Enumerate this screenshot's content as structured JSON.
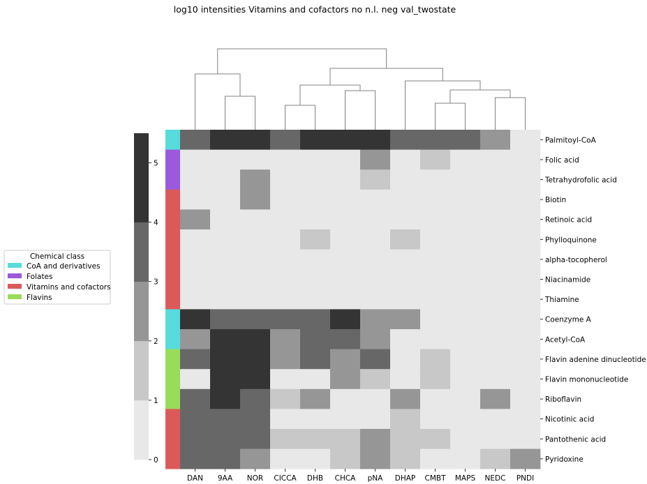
{
  "chart_data": {
    "type": "heatmap",
    "title": "log10 intensities Vitamins and cofactors no n.l. neg val_twostate",
    "columns": [
      "DAN",
      "9AA",
      "NOR",
      "CICCA",
      "DHB",
      "CHCA",
      "pNA",
      "DHAP",
      "CMBT",
      "MAPS",
      "NEDC",
      "PNDI"
    ],
    "rows": [
      "Palmitoyl-CoA",
      "Folic acid",
      "Tetrahydrofolic acid",
      "Biotin",
      "Retinoic acid",
      "Phylloquinone",
      "alpha-tocopherol",
      "Niacinamide",
      "Thiamine",
      "Coenzyme A",
      "Acetyl-CoA",
      "Flavin adenine dinucleotide",
      "Flavin mononucleotide",
      "Riboflavin",
      "Nicotinic acid",
      "Pantothenic acid",
      "Pyridoxine"
    ],
    "row_classes": [
      "CoA and derivatives",
      "Folates",
      "Folates",
      "Vitamins and cofactors",
      "Vitamins and cofactors",
      "Vitamins and cofactors",
      "Vitamins and cofactors",
      "Vitamins and cofactors",
      "Vitamins and cofactors",
      "CoA and derivatives",
      "CoA and derivatives",
      "Flavins",
      "Flavins",
      "Flavins",
      "Vitamins and cofactors",
      "Vitamins and cofactors",
      "Vitamins and cofactors"
    ],
    "values": [
      [
        4,
        5,
        5,
        4,
        5,
        5,
        5,
        4,
        4,
        4,
        3,
        0
      ],
      [
        0,
        0,
        0,
        0,
        0,
        0,
        3,
        0,
        2,
        0,
        0,
        0
      ],
      [
        0,
        0,
        3,
        0,
        0,
        0,
        2,
        0,
        0,
        0,
        0,
        0
      ],
      [
        0,
        0,
        3,
        0,
        0,
        0,
        0,
        0,
        0,
        0,
        0,
        0
      ],
      [
        3,
        0,
        0,
        0,
        0,
        0,
        0,
        0,
        0,
        0,
        0,
        0
      ],
      [
        0,
        0,
        0,
        0,
        2,
        0,
        0,
        2,
        0,
        0,
        0,
        0
      ],
      [
        0,
        0,
        0,
        0,
        0,
        0,
        0,
        0,
        0,
        0,
        0,
        0
      ],
      [
        0,
        0,
        0,
        0,
        0,
        0,
        0,
        0,
        0,
        0,
        0,
        0
      ],
      [
        0,
        0,
        0,
        0,
        0,
        0,
        0,
        0,
        0,
        0,
        0,
        0
      ],
      [
        5,
        4,
        4,
        4,
        4,
        5,
        3,
        3,
        0,
        0,
        0,
        0
      ],
      [
        3,
        5,
        5,
        3,
        4,
        4,
        3,
        0,
        0,
        0,
        0,
        0
      ],
      [
        4,
        5,
        5,
        3,
        4,
        3,
        4,
        0,
        2,
        0,
        0,
        0
      ],
      [
        0,
        5,
        5,
        0,
        0,
        3,
        2,
        0,
        2,
        0,
        0,
        0
      ],
      [
        4,
        5,
        4,
        2,
        3,
        0,
        0,
        3,
        0,
        0,
        3,
        0
      ],
      [
        4,
        4,
        4,
        0,
        0,
        0,
        0,
        2,
        0,
        0,
        0,
        0
      ],
      [
        4,
        4,
        4,
        2,
        2,
        2,
        3,
        2,
        2,
        0,
        0,
        0
      ],
      [
        4,
        4,
        3,
        0,
        0,
        2,
        3,
        2,
        0,
        0,
        2,
        3
      ]
    ],
    "colorbar": {
      "ticks": [
        0,
        1,
        2,
        3,
        4,
        5
      ],
      "colors": [
        "#e8e8e8",
        "#c8c8c8",
        "#969696",
        "#676767",
        "#343434"
      ]
    },
    "legend": {
      "title": "Chemical class",
      "placement": "left",
      "entries": [
        {
          "label": "CoA and derivatives",
          "color": "#58dbdc"
        },
        {
          "label": "Folates",
          "color": "#9b59dd"
        },
        {
          "label": "Vitamins and cofactors",
          "color": "#dd5959"
        },
        {
          "label": "Flavins",
          "color": "#97dd59"
        }
      ]
    },
    "dendrogram_color": "#808080"
  }
}
